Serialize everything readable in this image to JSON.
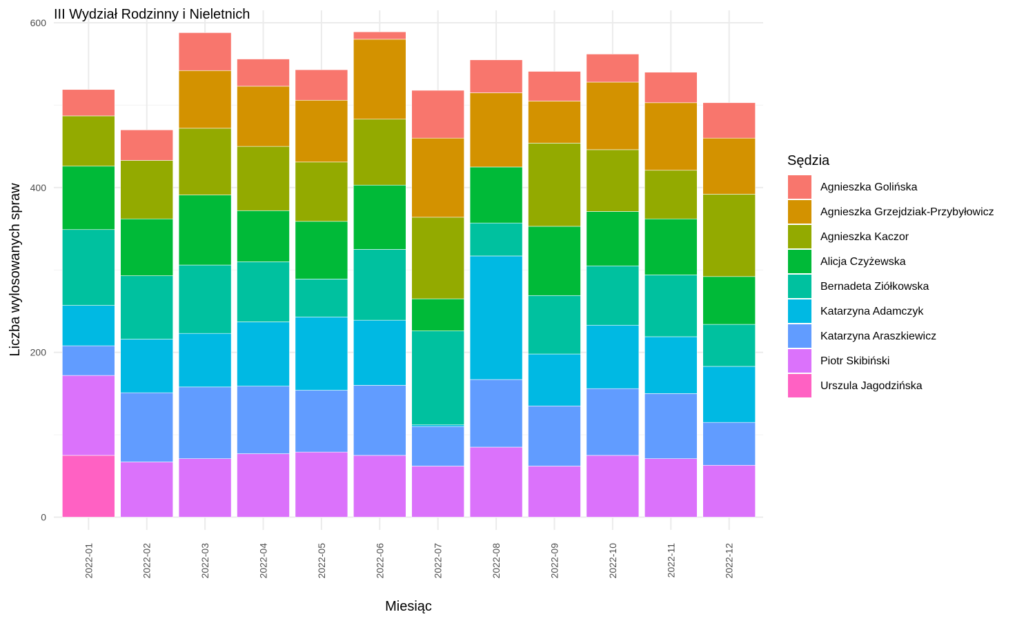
{
  "chart_data": {
    "type": "bar",
    "stacked": true,
    "title": "III Wydział Rodzinny i Nieletnich",
    "xlabel": "Miesiąc",
    "ylabel": "Liczba wylosowanych spraw",
    "ylim": [
      0,
      600
    ],
    "yticks": [
      0,
      200,
      400,
      600
    ],
    "grid": true,
    "legend_title": "Sędzia",
    "legend_position": "right",
    "categories": [
      "2022-01",
      "2022-02",
      "2022-03",
      "2022-04",
      "2022-05",
      "2022-06",
      "2022-07",
      "2022-08",
      "2022-09",
      "2022-10",
      "2022-11",
      "2022-12"
    ],
    "series": [
      {
        "name": "Urszula Jagodzińska",
        "color": "#FF61C3",
        "values": [
          75,
          0,
          0,
          0,
          0,
          0,
          0,
          0,
          0,
          0,
          0,
          0
        ]
      },
      {
        "name": "Piotr Skibiński",
        "color": "#DB72FB",
        "values": [
          97,
          67,
          71,
          77,
          79,
          75,
          62,
          85,
          62,
          75,
          71,
          63
        ]
      },
      {
        "name": "Katarzyna Araszkiewicz",
        "color": "#619CFF",
        "values": [
          36,
          84,
          87,
          82,
          75,
          85,
          48,
          82,
          73,
          81,
          79,
          52
        ]
      },
      {
        "name": "Katarzyna Adamczyk",
        "color": "#00B9E3",
        "values": [
          49,
          65,
          65,
          78,
          89,
          79,
          2,
          150,
          63,
          77,
          69,
          68
        ]
      },
      {
        "name": "Bernadeta Ziółkowska",
        "color": "#00C19F",
        "values": [
          92,
          77,
          83,
          73,
          46,
          86,
          114,
          40,
          71,
          72,
          75,
          51
        ]
      },
      {
        "name": "Alicja Czyżewska",
        "color": "#00BA38",
        "values": [
          77,
          69,
          85,
          62,
          70,
          78,
          39,
          68,
          84,
          66,
          68,
          58
        ]
      },
      {
        "name": "Agnieszka Kaczor",
        "color": "#93AA00",
        "values": [
          61,
          71,
          81,
          78,
          72,
          80,
          99,
          0,
          101,
          75,
          59,
          100
        ]
      },
      {
        "name": "Agnieszka Grzejdziak-Przybyłowicz",
        "color": "#D39200",
        "values": [
          0,
          0,
          70,
          73,
          75,
          97,
          96,
          90,
          51,
          82,
          82,
          68
        ]
      },
      {
        "name": "Agnieszka Golińska",
        "color": "#F8766D",
        "values": [
          32,
          37,
          46,
          33,
          37,
          9,
          58,
          40,
          36,
          34,
          37,
          43
        ]
      }
    ],
    "legend_order": [
      "Agnieszka Golińska",
      "Agnieszka Grzejdziak-Przybyłowicz",
      "Agnieszka Kaczor",
      "Alicja Czyżewska",
      "Bernadeta Ziółkowska",
      "Katarzyna Adamczyk",
      "Katarzyna Araszkiewicz",
      "Piotr Skibiński",
      "Urszula Jagodzińska"
    ]
  }
}
